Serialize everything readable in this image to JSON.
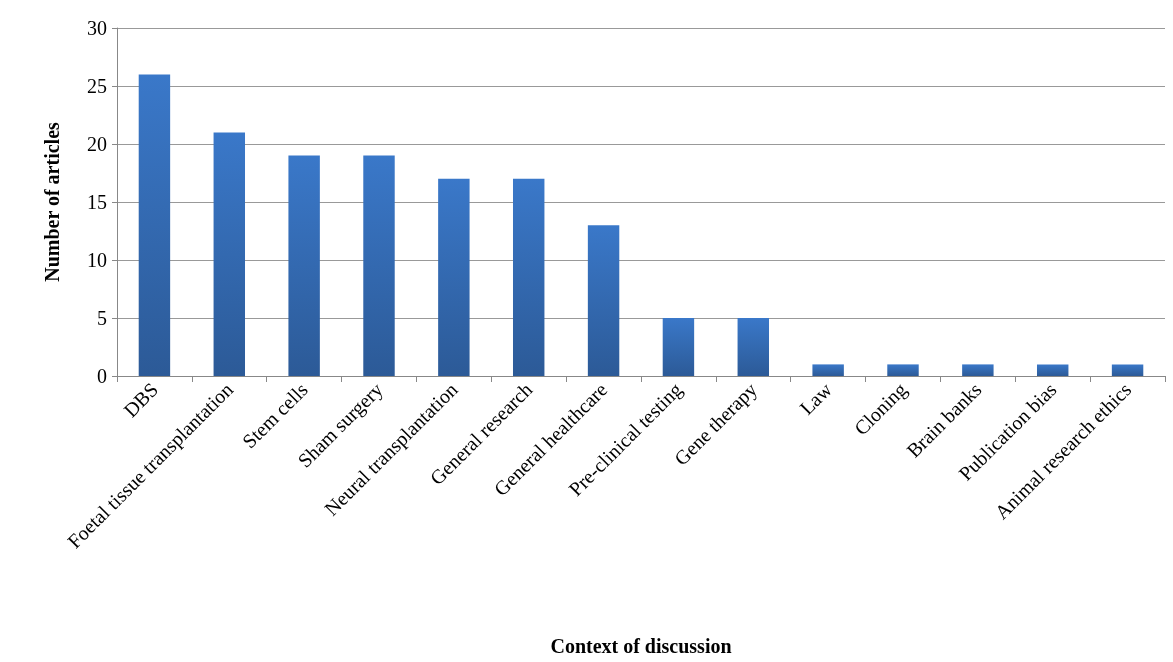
{
  "chart_data": {
    "type": "bar",
    "xlabel": "Context of discussion",
    "ylabel": "Number of articles",
    "categories": [
      "DBS",
      "Foetal tissue transplantation",
      "Stem cells",
      "Sham surgery",
      "Neural transplantation",
      "General research",
      "General healthcare",
      "Pre-clinical testing",
      "Gene therapy",
      "Law",
      "Cloning",
      "Brain banks",
      "Publication bias",
      "Animal research ethics"
    ],
    "values": [
      26,
      21,
      19,
      19,
      17,
      17,
      13,
      5,
      5,
      1,
      1,
      1,
      1,
      1
    ],
    "color": "#3a78c9",
    "ylim": [
      0,
      30
    ],
    "yticks": [
      0,
      5,
      10,
      15,
      20,
      25,
      30
    ],
    "grid": "y"
  }
}
